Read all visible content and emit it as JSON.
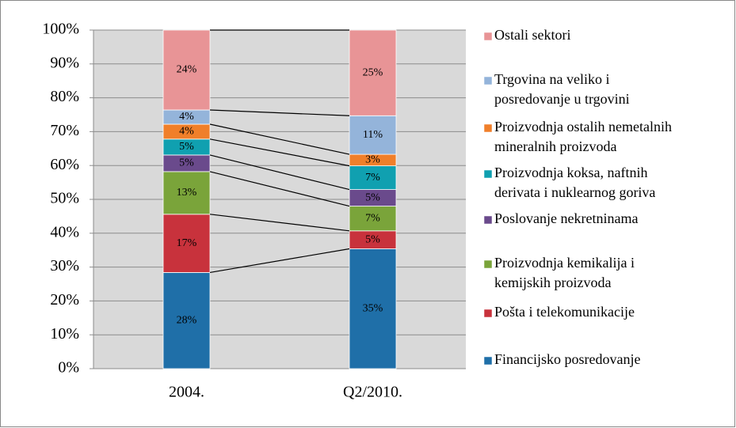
{
  "chart_data": {
    "type": "bar",
    "stacked": true,
    "categories": [
      "2004.",
      "Q2/2010."
    ],
    "series": [
      {
        "name": "Financijsko posredovanje",
        "color": "#1f6fa8",
        "values": [
          28.4,
          35.4
        ],
        "value_labels": [
          "28%",
          "35%"
        ]
      },
      {
        "name": "Pošta i telekomunikacije",
        "color": "#c8323c",
        "values": [
          17.2,
          5.3
        ],
        "value_labels": [
          "17%",
          "5%"
        ]
      },
      {
        "name": "Proizvodnja kemikalija i kemijskih proizvoda",
        "color": "#7aa43a",
        "values": [
          12.6,
          7.3
        ],
        "value_labels": [
          "13%",
          "7%"
        ]
      },
      {
        "name": "Poslovanje nekretninama",
        "color": "#6a4a8c",
        "values": [
          4.9,
          4.9
        ],
        "value_labels": [
          "5%",
          "5%"
        ]
      },
      {
        "name": "Proizvodnja koksa, naftnih derivata i nuklearnog goriva",
        "color": "#10a0b0",
        "values": [
          4.7,
          7.0
        ],
        "value_labels": [
          "5%",
          "7%"
        ]
      },
      {
        "name": "Proizvodnja ostalih nemetalnih mineralnih proizvoda",
        "color": "#f07f2a",
        "values": [
          4.4,
          3.4
        ],
        "value_labels": [
          "4%",
          "3%"
        ]
      },
      {
        "name": "Trgovina na veliko i posredovanje u trgovini",
        "color": "#94b4da",
        "values": [
          4.2,
          11.4
        ],
        "value_labels": [
          "4%",
          "11%"
        ]
      },
      {
        "name": "Ostali sektori",
        "color": "#e89496",
        "values": [
          23.6,
          25.3
        ],
        "value_labels": [
          "24%",
          "25%"
        ]
      }
    ],
    "ylim": [
      0,
      100
    ],
    "yticks": [
      {
        "value": 0,
        "label": "0%"
      },
      {
        "value": 10,
        "label": "10%"
      },
      {
        "value": 20,
        "label": "20%"
      },
      {
        "value": 30,
        "label": "30%"
      },
      {
        "value": 40,
        "label": "40%"
      },
      {
        "value": 50,
        "label": "50%"
      },
      {
        "value": 60,
        "label": "60%"
      },
      {
        "value": 70,
        "label": "70%"
      },
      {
        "value": 80,
        "label": "80%"
      },
      {
        "value": 90,
        "label": "90%"
      },
      {
        "value": 100,
        "label": "100%"
      }
    ],
    "grid": true,
    "legend": "right"
  }
}
